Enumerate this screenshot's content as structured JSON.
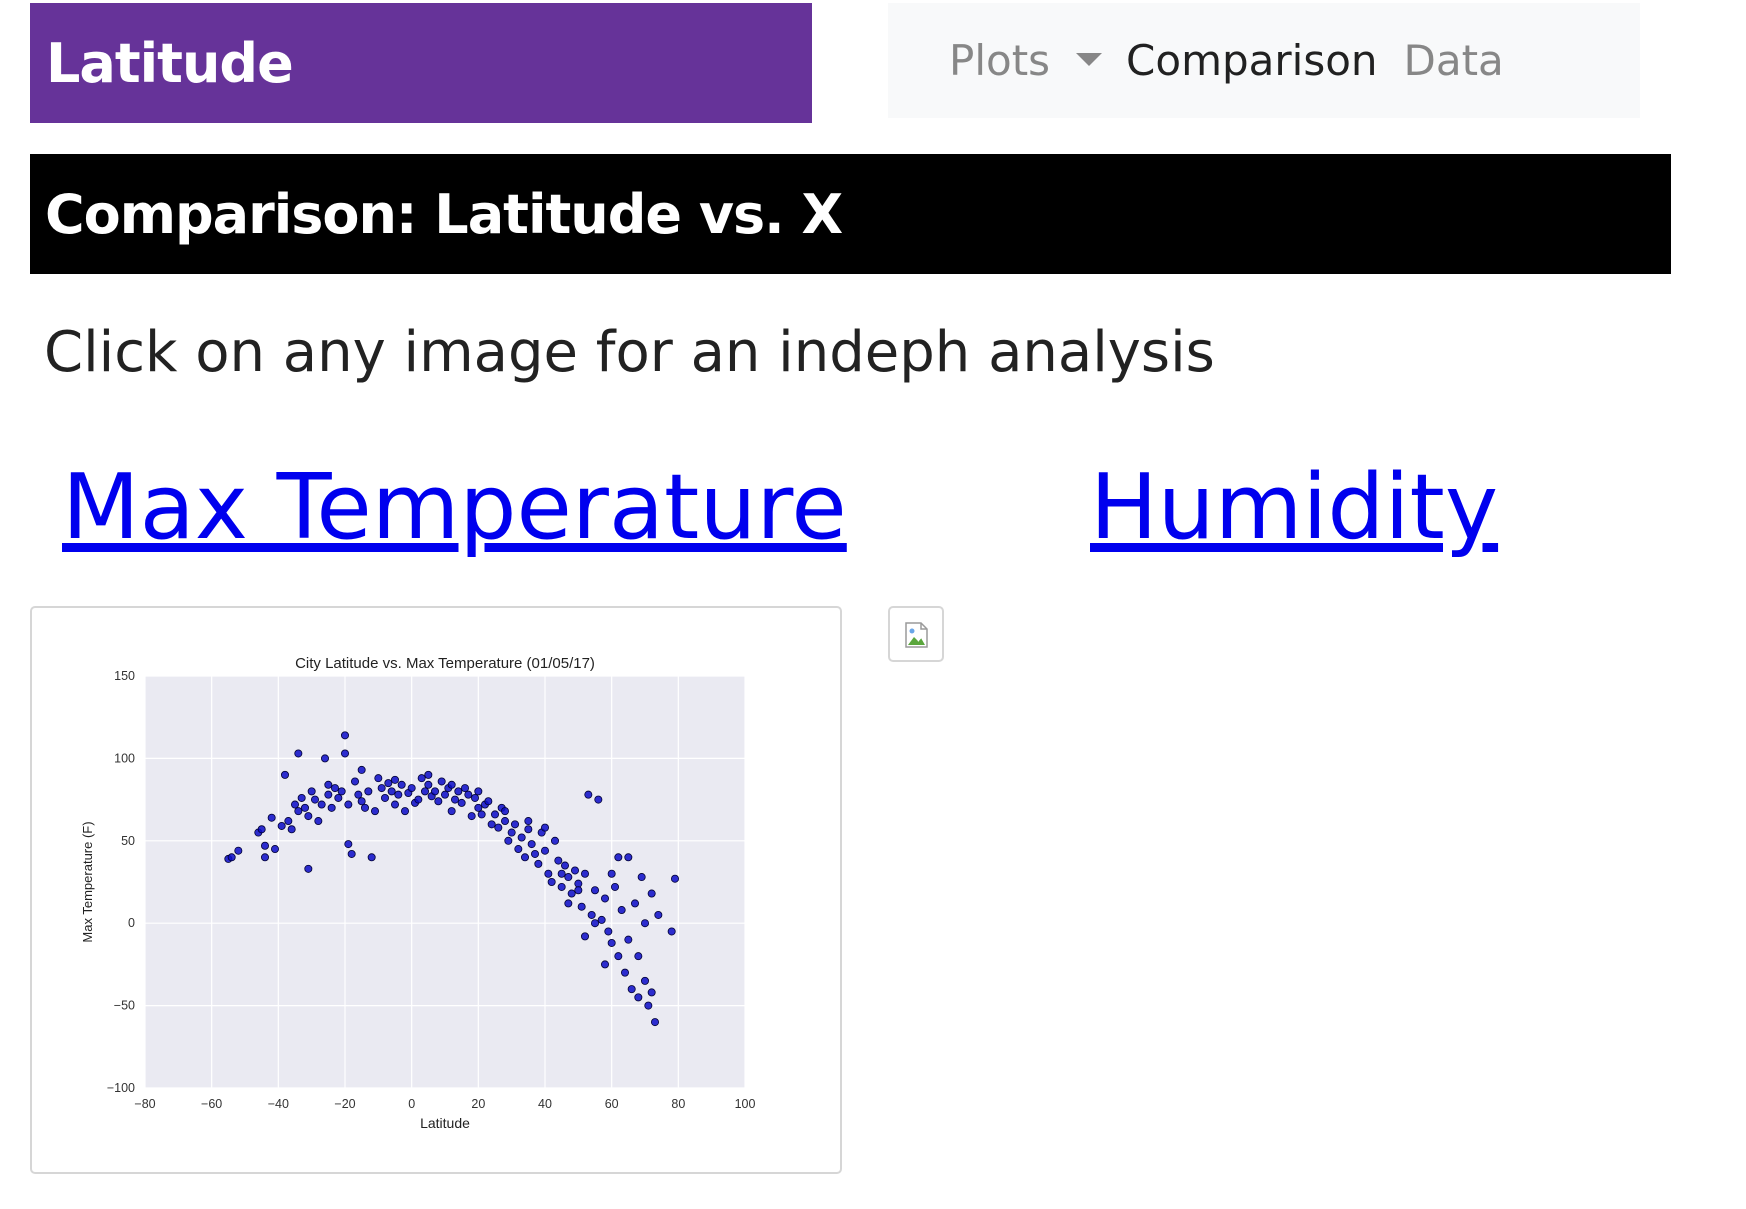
{
  "brand": {
    "title": "Latitude"
  },
  "nav": {
    "plots_label": "Plots",
    "comparison_label": "Comparison",
    "data_label": "Data"
  },
  "heading": "Comparison: Latitude vs. X",
  "subtitle": "Click on any image for an indeph analysis",
  "links": {
    "max_temperature": "Max Temperature",
    "humidity": "Humidity"
  },
  "colors": {
    "brand_bg": "#663399",
    "heading_bg": "#000000",
    "nav_bg": "#f8f9fa",
    "link": "#0000ee",
    "plot_bg": "#eaeaf2",
    "marker": "#0b0bc8"
  },
  "chart_data": {
    "type": "scatter",
    "title": "City Latitude vs. Max Temperature (01/05/17)",
    "xlabel": "Latitude",
    "ylabel": "Max Temperature (F)",
    "xlim": [
      -80,
      100
    ],
    "ylim": [
      -100,
      150
    ],
    "xticks": [
      -80,
      -60,
      -40,
      -20,
      0,
      20,
      40,
      60,
      80,
      100
    ],
    "yticks": [
      -100,
      -50,
      0,
      50,
      100,
      150
    ],
    "xtick_labels": [
      "−80",
      "−60",
      "−40",
      "−20",
      "0",
      "20",
      "40",
      "60",
      "80",
      "100"
    ],
    "ytick_labels": [
      "−100",
      "−50",
      "0",
      "50",
      "100",
      "150"
    ],
    "grid": true,
    "points": [
      [
        -55,
        39
      ],
      [
        -54,
        40
      ],
      [
        -52,
        44
      ],
      [
        -46,
        55
      ],
      [
        -45,
        57
      ],
      [
        -44,
        47
      ],
      [
        -44,
        40
      ],
      [
        -42,
        64
      ],
      [
        -41,
        45
      ],
      [
        -39,
        59
      ],
      [
        -38,
        90
      ],
      [
        -37,
        62
      ],
      [
        -36,
        57
      ],
      [
        -35,
        72
      ],
      [
        -34,
        68
      ],
      [
        -34,
        103
      ],
      [
        -33,
        76
      ],
      [
        -32,
        70
      ],
      [
        -31,
        65
      ],
      [
        -31,
        33
      ],
      [
        -30,
        80
      ],
      [
        -29,
        75
      ],
      [
        -28,
        62
      ],
      [
        -27,
        72
      ],
      [
        -26,
        100
      ],
      [
        -25,
        84
      ],
      [
        -25,
        78
      ],
      [
        -24,
        70
      ],
      [
        -23,
        82
      ],
      [
        -22,
        76
      ],
      [
        -21,
        80
      ],
      [
        -20,
        114
      ],
      [
        -20,
        103
      ],
      [
        -19,
        72
      ],
      [
        -19,
        48
      ],
      [
        -18,
        42
      ],
      [
        -17,
        86
      ],
      [
        -16,
        78
      ],
      [
        -15,
        74
      ],
      [
        -14,
        70
      ],
      [
        -13,
        80
      ],
      [
        -12,
        40
      ],
      [
        -11,
        68
      ],
      [
        -10,
        88
      ],
      [
        -9,
        82
      ],
      [
        -8,
        76
      ],
      [
        -7,
        85
      ],
      [
        -6,
        80
      ],
      [
        -5,
        72
      ],
      [
        -4,
        78
      ],
      [
        -3,
        84
      ],
      [
        -2,
        68
      ],
      [
        -1,
        79
      ],
      [
        0,
        82
      ],
      [
        1,
        73
      ],
      [
        2,
        75
      ],
      [
        3,
        88
      ],
      [
        4,
        80
      ],
      [
        5,
        84
      ],
      [
        6,
        77
      ],
      [
        7,
        80
      ],
      [
        8,
        74
      ],
      [
        9,
        86
      ],
      [
        10,
        78
      ],
      [
        11,
        82
      ],
      [
        12,
        68
      ],
      [
        13,
        75
      ],
      [
        14,
        80
      ],
      [
        15,
        73
      ],
      [
        16,
        82
      ],
      [
        17,
        78
      ],
      [
        18,
        65
      ],
      [
        19,
        76
      ],
      [
        20,
        80
      ],
      [
        21,
        66
      ],
      [
        22,
        72
      ],
      [
        23,
        74
      ],
      [
        24,
        60
      ],
      [
        25,
        66
      ],
      [
        26,
        58
      ],
      [
        27,
        70
      ],
      [
        28,
        62
      ],
      [
        29,
        50
      ],
      [
        30,
        55
      ],
      [
        31,
        60
      ],
      [
        32,
        45
      ],
      [
        33,
        52
      ],
      [
        34,
        40
      ],
      [
        35,
        57
      ],
      [
        36,
        48
      ],
      [
        37,
        42
      ],
      [
        38,
        36
      ],
      [
        39,
        55
      ],
      [
        40,
        44
      ],
      [
        41,
        30
      ],
      [
        42,
        25
      ],
      [
        43,
        50
      ],
      [
        44,
        38
      ],
      [
        45,
        22
      ],
      [
        46,
        35
      ],
      [
        47,
        28
      ],
      [
        48,
        18
      ],
      [
        49,
        32
      ],
      [
        50,
        24
      ],
      [
        51,
        10
      ],
      [
        52,
        30
      ],
      [
        53,
        78
      ],
      [
        54,
        5
      ],
      [
        55,
        20
      ],
      [
        56,
        75
      ],
      [
        57,
        2
      ],
      [
        58,
        15
      ],
      [
        59,
        -5
      ],
      [
        60,
        -12
      ],
      [
        61,
        22
      ],
      [
        62,
        -20
      ],
      [
        63,
        8
      ],
      [
        64,
        -30
      ],
      [
        65,
        40
      ],
      [
        66,
        -40
      ],
      [
        67,
        12
      ],
      [
        68,
        -45
      ],
      [
        69,
        28
      ],
      [
        70,
        -35
      ],
      [
        71,
        -50
      ],
      [
        72,
        18
      ],
      [
        73,
        -60
      ],
      [
        74,
        5
      ],
      [
        78,
        -5
      ],
      [
        79,
        27
      ],
      [
        -15,
        93
      ],
      [
        -5,
        87
      ],
      [
        5,
        90
      ],
      [
        12,
        84
      ],
      [
        20,
        70
      ],
      [
        28,
        68
      ],
      [
        35,
        62
      ],
      [
        40,
        58
      ],
      [
        45,
        30
      ],
      [
        50,
        20
      ],
      [
        55,
        0
      ],
      [
        60,
        30
      ],
      [
        65,
        -10
      ],
      [
        70,
        0
      ],
      [
        47,
        12
      ],
      [
        52,
        -8
      ],
      [
        58,
        -25
      ],
      [
        62,
        40
      ],
      [
        68,
        -20
      ],
      [
        72,
        -42
      ]
    ]
  }
}
